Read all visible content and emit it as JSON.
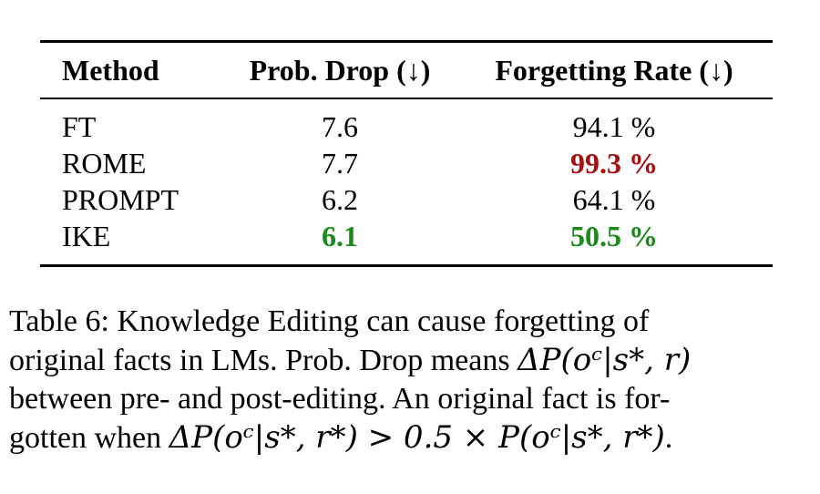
{
  "table": {
    "headers": {
      "method": "Method",
      "drop": "Prob. Drop (↓)",
      "rate": "Forgetting Rate (↓)"
    },
    "rows": [
      {
        "method": "FT",
        "drop": "7.6",
        "rate": "94.1 %"
      },
      {
        "method": "ROME",
        "drop": "7.7",
        "rate": "99.3 %"
      },
      {
        "method": "PROMPT",
        "drop": "6.2",
        "rate": "64.1 %"
      },
      {
        "method": "IKE",
        "drop": "6.1",
        "rate": "50.5 %"
      }
    ]
  },
  "colors": {
    "worst": "#a50f0f",
    "best": "#1a8a1a",
    "text": "#000000"
  },
  "caption": {
    "label": "Table 6:",
    "text1": " Knowledge Editing can cause forgetting of",
    "text2": "original facts in LMs. Prob. Drop means ",
    "math1": "ΔP(oᶜ|s*, r)",
    "text3": "between pre- and post-editing. An original fact is for-",
    "text4": "gotten when ",
    "math2": "ΔP(oᶜ|s*, r*) > 0.5 × P(oᶜ|s*, r*)",
    "text5": "."
  }
}
